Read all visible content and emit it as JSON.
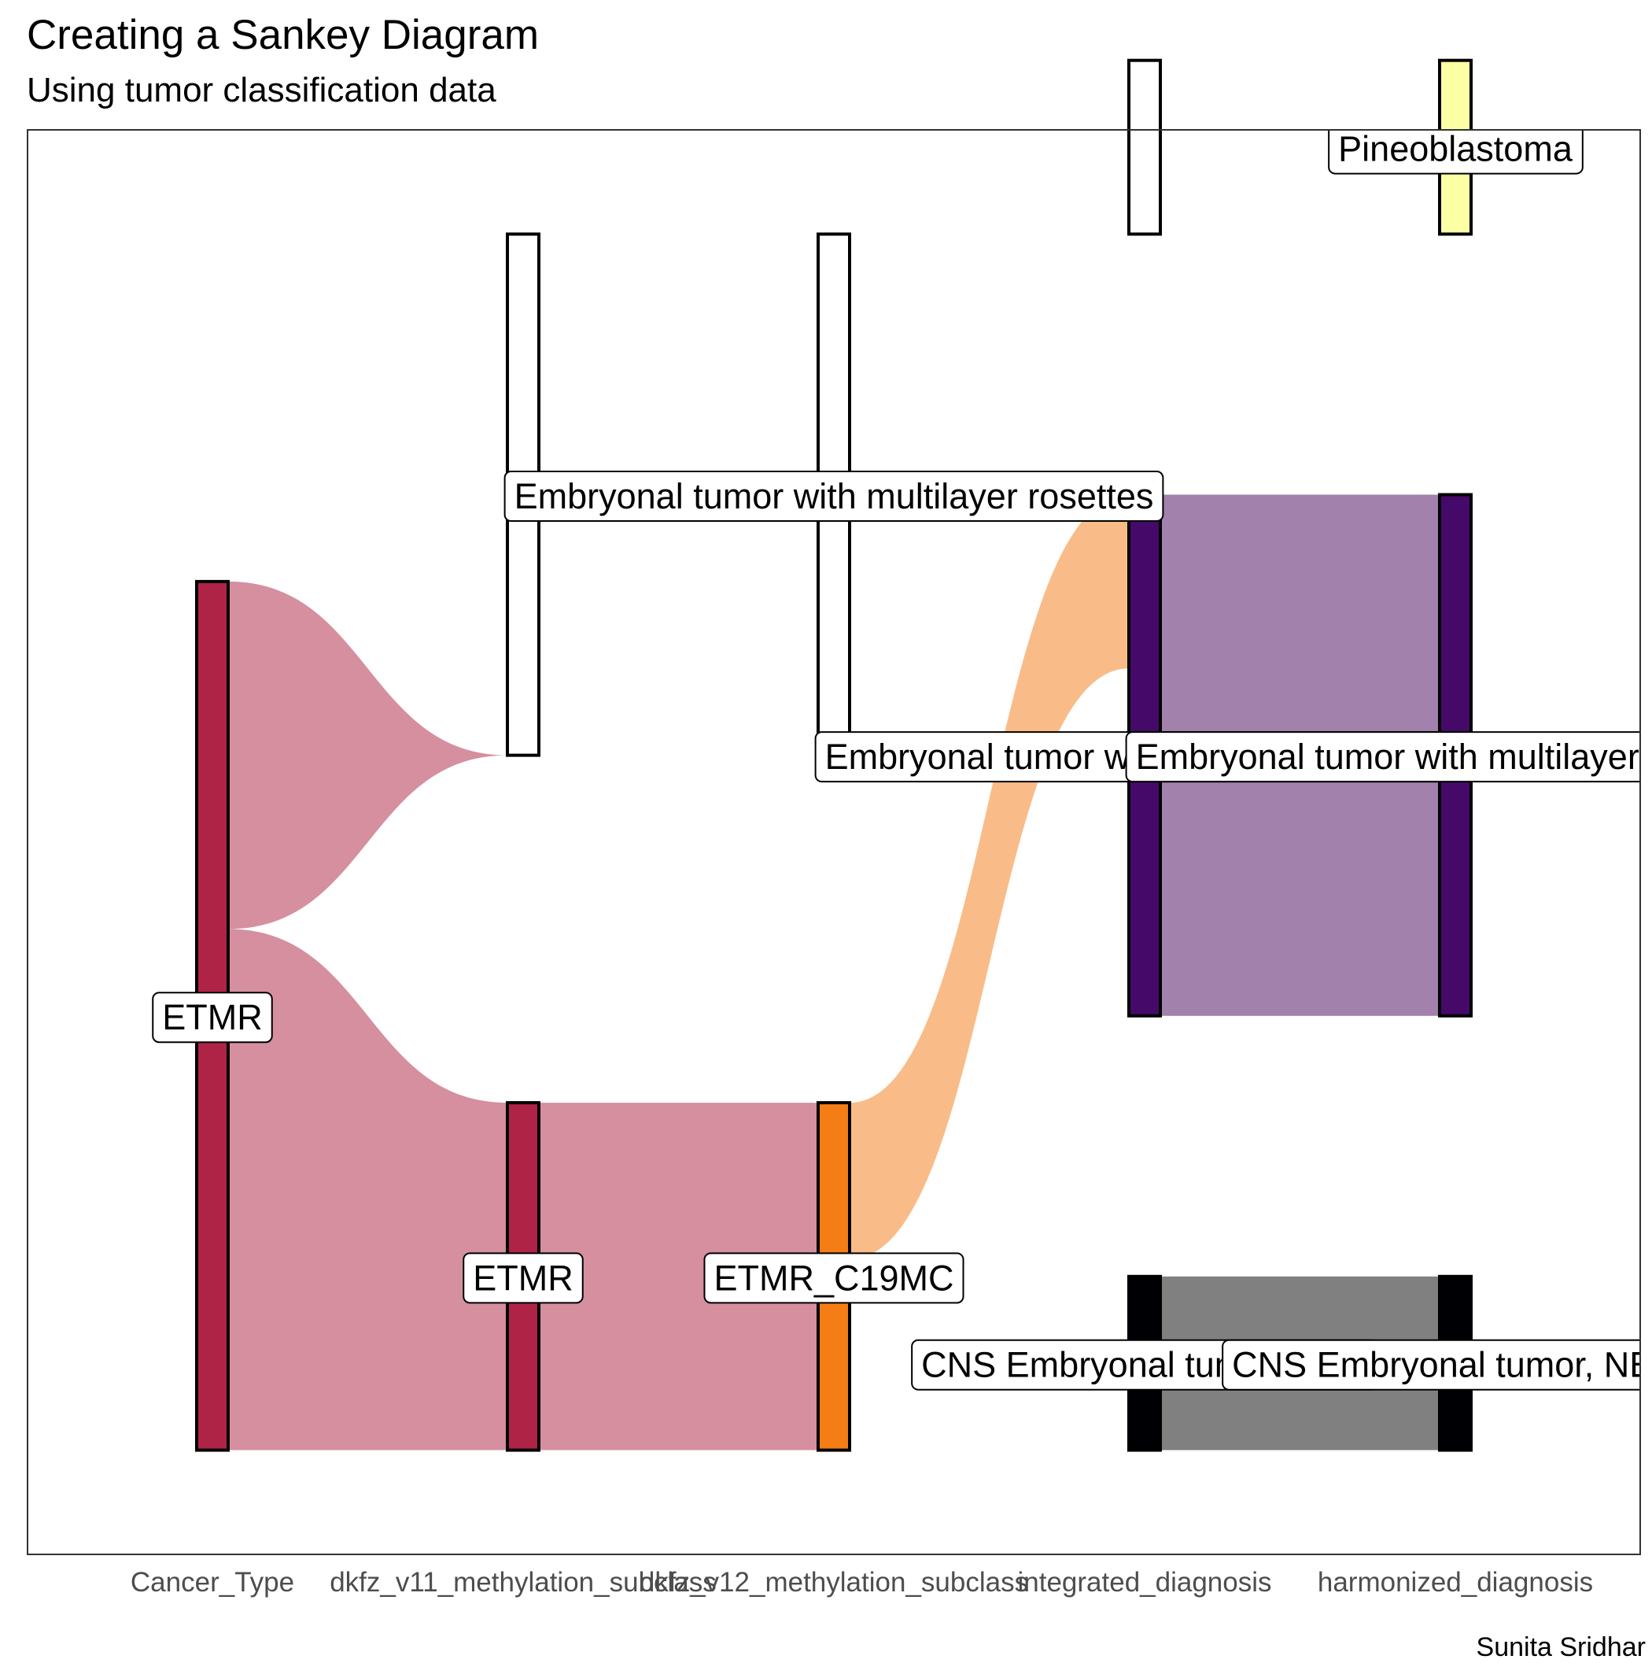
{
  "title": "Creating a Sankey Diagram",
  "subtitle": "Using tumor classification data",
  "caption": "Sunita Sridhar",
  "chart_data": {
    "type": "sankey",
    "axes": [
      "Cancer_Type",
      "dkfz_v11_methylation_subclass",
      "dkfz_v12_methylation_subclass",
      "integrated_diagnosis",
      "harmonized_diagnosis"
    ],
    "nodes": [
      {
        "id": "ct_na",
        "axis": 0,
        "label": "",
        "y0": 10,
        "y1": 10,
        "fill": "#ffffff"
      },
      {
        "id": "ct_etmr",
        "axis": 0,
        "label": "ETMR",
        "y0": 0,
        "y1": 5,
        "fill": "#ae2346"
      },
      {
        "id": "v11_na",
        "axis": 1,
        "label": "",
        "y0": 4,
        "y1": 7,
        "fill": "#ffffff"
      },
      {
        "id": "v11_etmr",
        "axis": 1,
        "label": "ETMR",
        "y0": 0,
        "y1": 2,
        "fill": "#ae2346"
      },
      {
        "id": "v12_emb",
        "axis": 2,
        "label": "Embryonal tumor with multilayer rosettes",
        "y0": 4,
        "y1": 7,
        "fill": "#ffffff"
      },
      {
        "id": "v12_etmr",
        "axis": 2,
        "label": "ETMR_C19MC",
        "y0": 0,
        "y1": 2,
        "fill": "#f57d15"
      },
      {
        "id": "id_pineo",
        "axis": 3,
        "label": "",
        "y0": 7,
        "y1": 8,
        "fill": "#ffffff"
      },
      {
        "id": "id_emb",
        "axis": 3,
        "label": "Embryonal tumor with multilayer rosettes",
        "y0": 2.5,
        "y1": 5.5,
        "fill": "#450a69"
      },
      {
        "id": "id_cns",
        "axis": 3,
        "label": "CNS Embryonal tumor, NEC",
        "y0": 0,
        "y1": 1,
        "fill": "#000004"
      },
      {
        "id": "hd_pineo",
        "axis": 4,
        "label": "Pineoblastoma",
        "y0": 7,
        "y1": 8,
        "fill": "#fcffa4"
      },
      {
        "id": "hd_emb",
        "axis": 4,
        "label": "Embryonal tumor with multilayer rosettes",
        "y0": 2.5,
        "y1": 5.5,
        "fill": "#450a69"
      },
      {
        "id": "hd_cns",
        "axis": 4,
        "label": "CNS Embryonal tumor, NEC",
        "y0": 0,
        "y1": 1,
        "fill": "#000004"
      }
    ],
    "flows": [
      {
        "from": "ct_etmr",
        "to": "v11_na",
        "from_y": [
          3,
          5
        ],
        "to_y": [
          4,
          4
        ],
        "fill": "#d58f9f"
      },
      {
        "from": "ct_etmr",
        "to": "v11_etmr",
        "from_y": [
          0,
          3
        ],
        "to_y": [
          0,
          2
        ],
        "fill": "#d58f9f"
      },
      {
        "from": "v11_etmr",
        "to": "v12_etmr",
        "from_y": [
          0,
          2
        ],
        "to_y": [
          0,
          2
        ],
        "fill": "#d58f9f"
      },
      {
        "from": "v12_etmr",
        "to": "id_emb",
        "from_y": [
          1.1,
          2
        ],
        "to_y": [
          4.5,
          5.5
        ],
        "fill": "#f9bc88"
      },
      {
        "from": "id_emb",
        "to": "hd_emb",
        "from_y": [
          2.5,
          5.5
        ],
        "to_y": [
          2.5,
          5.5
        ],
        "fill": "#a281ac"
      },
      {
        "from": "id_cns",
        "to": "hd_cns",
        "from_y": [
          0,
          1
        ],
        "to_y": [
          0,
          1
        ],
        "fill": "#808080"
      }
    ],
    "ylim": [
      -0.6,
      7.6
    ],
    "grid": false,
    "panel_border": true
  }
}
